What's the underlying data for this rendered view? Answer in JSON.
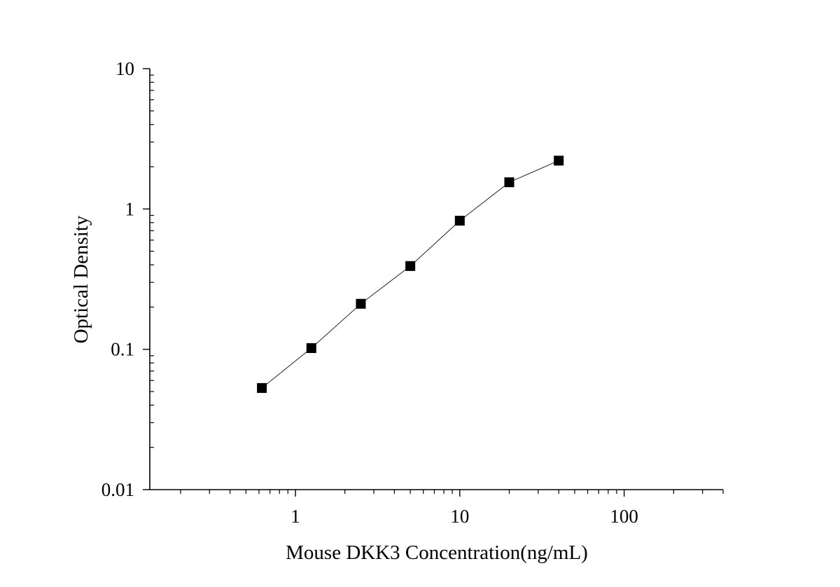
{
  "chart_data": {
    "type": "scatter",
    "title": "",
    "xlabel": "Mouse DKK3 Concentration(ng/mL)",
    "ylabel": "Optical Density",
    "x_scale": "log",
    "y_scale": "log",
    "xlim": [
      0.13,
      400
    ],
    "ylim": [
      0.01,
      10
    ],
    "x_tick_labels": [
      "1",
      "10",
      "100"
    ],
    "y_tick_labels": [
      "0.01",
      "0.1",
      "1",
      "10"
    ],
    "grid": false,
    "legend": "none",
    "marker": "square",
    "connect_points": true,
    "series": [
      {
        "x": [
          0.625,
          1.25,
          2.5,
          5,
          10,
          20,
          40
        ],
        "y": [
          0.053,
          0.102,
          0.211,
          0.392,
          0.825,
          1.55,
          2.21
        ]
      }
    ]
  }
}
